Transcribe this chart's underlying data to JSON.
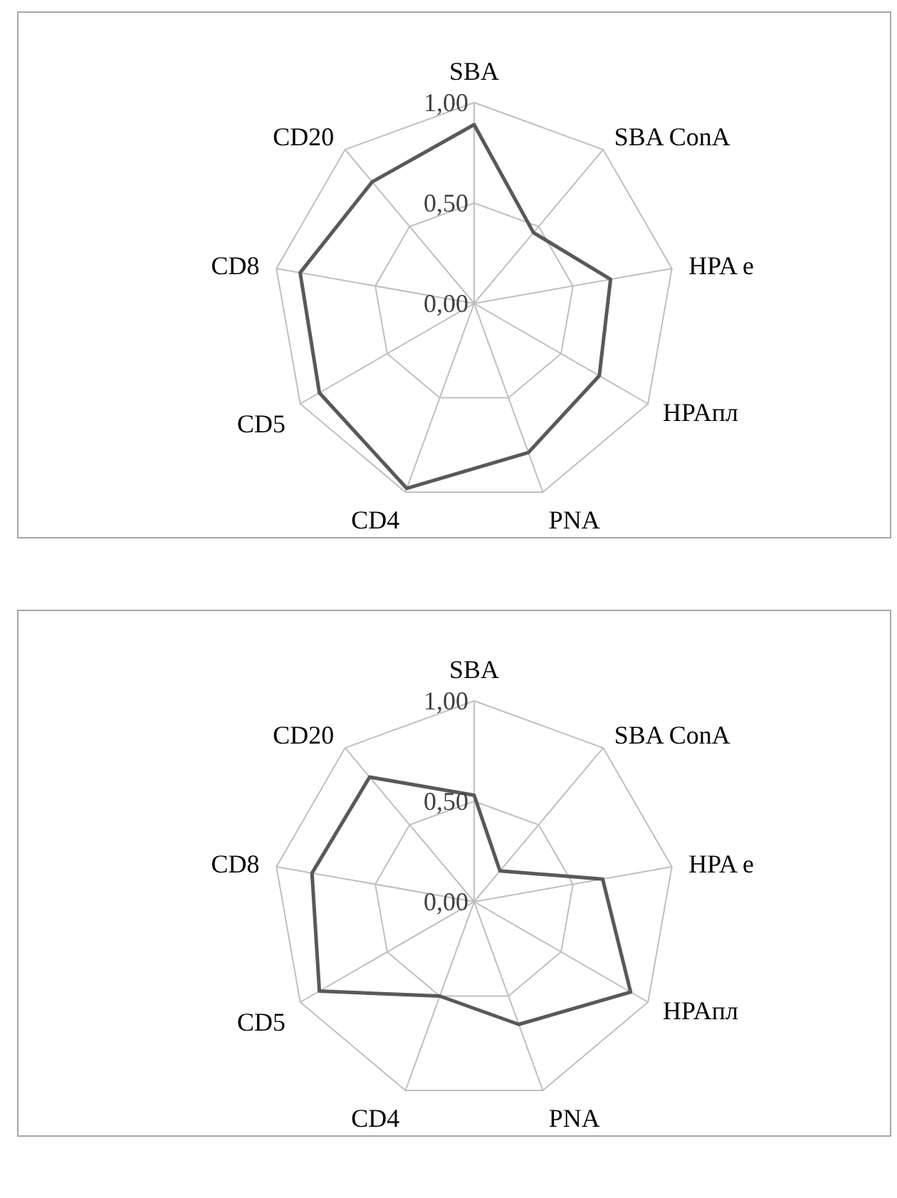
{
  "chart_data": [
    {
      "type": "radar",
      "categories": [
        "SBA",
        "SBA ConA",
        "HPA e",
        "HPAпл",
        "PNA",
        "CD4",
        "CD5",
        "CD8",
        "CD20"
      ],
      "ylim": [
        0,
        1
      ],
      "yticks": [
        {
          "value": 0,
          "label": "0,00"
        },
        {
          "value": 0.5,
          "label": "0,50"
        },
        {
          "value": 1,
          "label": "1,00"
        }
      ],
      "grid": true,
      "marker": "none",
      "series": [
        {
          "color": "#595959",
          "values": [
            0.89,
            0.46,
            0.69,
            0.72,
            0.79,
            0.98,
            0.89,
            0.88,
            0.79
          ]
        }
      ]
    },
    {
      "type": "radar",
      "categories": [
        "SBA",
        "SBA ConA",
        "HPA e",
        "HPAпл",
        "PNA",
        "CD4",
        "CD5",
        "CD8",
        "CD20"
      ],
      "ylim": [
        0,
        1
      ],
      "yticks": [
        {
          "value": 0,
          "label": "0,00"
        },
        {
          "value": 0.5,
          "label": "0,50"
        },
        {
          "value": 1,
          "label": "1,00"
        }
      ],
      "grid": true,
      "marker": "none",
      "series": [
        {
          "color": "#595959",
          "values": [
            0.53,
            0.2,
            0.65,
            0.9,
            0.65,
            0.5,
            0.89,
            0.82,
            0.81
          ]
        }
      ]
    }
  ]
}
